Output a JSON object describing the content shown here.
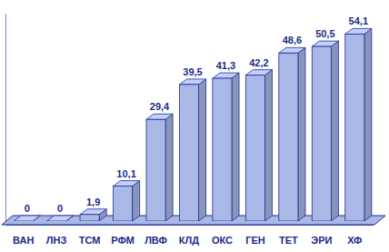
{
  "chart_data": {
    "type": "bar",
    "categories": [
      "ВАН",
      "ЛНЗ",
      "ТСМ",
      "РФМ",
      "ЛВФ",
      "КЛД",
      "ОКС",
      "ГЕН",
      "ТЕТ",
      "ЭРИ",
      "ХФ"
    ],
    "values": [
      0,
      0,
      1.9,
      10.1,
      29.4,
      39.5,
      41.3,
      42.2,
      48.6,
      50.5,
      54.1
    ],
    "value_labels": [
      "0",
      "0",
      "1,9",
      "10,1",
      "29,4",
      "39,5",
      "41,3",
      "42,2",
      "48,6",
      "50,5",
      "54,1"
    ],
    "color": "#aab8e8",
    "ylim": [
      0,
      60
    ],
    "data_labels": true,
    "tick_labels": "x",
    "grid": false
  }
}
